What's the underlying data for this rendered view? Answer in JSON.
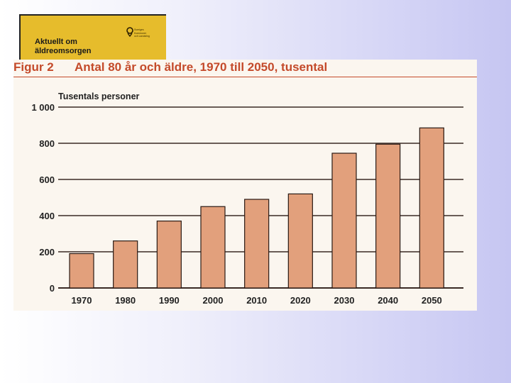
{
  "banner": {
    "line1": "Aktuellt om",
    "line2": "äldreomsorgen",
    "logo_lines": [
      "Sveriges",
      "Kommuner",
      "och Landsting"
    ],
    "color": "#e6bc2c"
  },
  "figure": {
    "label": "Figur 2",
    "title": "Antal 80 år och äldre, 1970 till 2050, tusental",
    "title_color": "#c44a2a"
  },
  "chart_data": {
    "type": "bar",
    "categories": [
      "1970",
      "1980",
      "1990",
      "2000",
      "2010",
      "2020",
      "2030",
      "2040",
      "2050"
    ],
    "values": [
      190,
      260,
      370,
      450,
      490,
      520,
      745,
      795,
      885
    ],
    "ylabel": "Tusentals personer",
    "ylim": [
      0,
      1000
    ],
    "yticks": [
      0,
      200,
      400,
      600,
      800,
      1000
    ],
    "ytick_labels": [
      "0",
      "200",
      "400",
      "600",
      "800",
      "1 000"
    ],
    "grid": true,
    "bar_color": "#e2a07c"
  }
}
